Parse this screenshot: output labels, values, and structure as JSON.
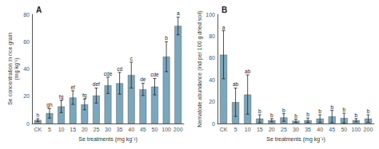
{
  "chart_data": [
    {
      "type": "bar",
      "title": "A",
      "categories": [
        "CK",
        "5",
        "10",
        "15",
        "20",
        "25",
        "30",
        "35",
        "40",
        "45",
        "50",
        "100",
        "200"
      ],
      "values": [
        2.5,
        7.5,
        12.5,
        19.0,
        14.0,
        20.5,
        28.0,
        29.5,
        35.5,
        25.0,
        27.0,
        49.0,
        71.5
      ],
      "errors": [
        1.0,
        3.5,
        4.5,
        5.0,
        4.0,
        5.5,
        6.0,
        8.0,
        9.5,
        4.5,
        6.0,
        11.0,
        6.5
      ],
      "annotations": [
        "h",
        "gh",
        "fg",
        "ef",
        "fg",
        "def",
        "cde",
        "cd",
        "c",
        "de",
        "cde",
        "b",
        "a"
      ],
      "xlabel": "Se treatments (mg kg⁻¹)",
      "ylabel": "Se concentration in rice grain\n(mg kg⁻¹)",
      "ylim": [
        0,
        80
      ],
      "yticks": [
        0,
        20,
        40,
        60,
        80
      ],
      "color": "#7ba7bc",
      "grid": false
    },
    {
      "type": "bar",
      "title": "B",
      "categories": [
        "CK",
        "5",
        "10",
        "15",
        "20",
        "25",
        "30",
        "35",
        "40",
        "45",
        "50",
        "100",
        "200"
      ],
      "values": [
        63.0,
        19.5,
        26.5,
        4.5,
        3.0,
        5.5,
        2.5,
        3.0,
        4.5,
        6.5,
        5.0,
        3.0,
        4.5
      ],
      "errors": [
        22.0,
        13.0,
        18.0,
        3.5,
        1.5,
        3.5,
        1.5,
        2.0,
        3.5,
        5.5,
        4.5,
        1.5,
        3.5
      ],
      "annotations": [
        "a",
        "ab",
        "ab",
        "b",
        "b",
        "b",
        "b",
        "b",
        "b",
        "b",
        "b",
        "b",
        "b"
      ],
      "xlabel": "Se treatments (mg kg⁻¹)",
      "ylabel": "Nematode abundance (ind per 100 g dried soil)",
      "ylim": [
        0,
        100
      ],
      "yticks": [
        0,
        20,
        40,
        60,
        80,
        100
      ],
      "color": "#7ba7bc",
      "grid": false
    }
  ]
}
